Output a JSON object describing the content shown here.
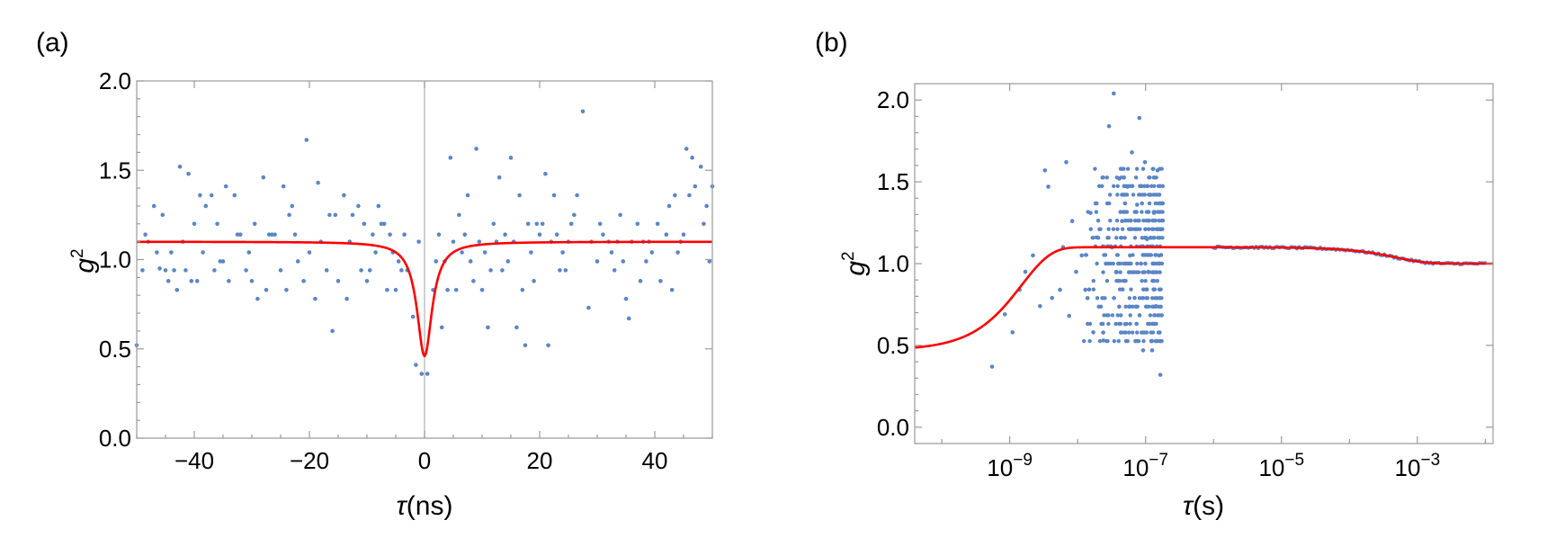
{
  "chart_data": [
    {
      "panel_label": "(a)",
      "type": "scatter",
      "xlabel": "τ(ns)",
      "ylabel": "g2",
      "ylabel_base": "g",
      "ylabel_sup": "2",
      "xlim": [
        -50,
        50
      ],
      "ylim": [
        0.0,
        2.0
      ],
      "xticks": [
        -40,
        -20,
        0,
        20,
        40
      ],
      "xtick_labels": [
        "−40",
        "−20",
        "0",
        "20",
        "40"
      ],
      "yticks": [
        0.0,
        0.5,
        1.0,
        1.5,
        2.0
      ],
      "ytick_labels": [
        "0.0",
        "0.5",
        "1.0",
        "1.5",
        "2.0"
      ],
      "grid": false,
      "vertical_line_at_x": 0,
      "point_color": "#5b86c5",
      "fit_color": "#ff0000",
      "series": [
        {
          "kind": "points",
          "points": [
            [
              -50,
              0.52
            ],
            [
              -49,
              0.94
            ],
            [
              -48.5,
              1.14
            ],
            [
              -48,
              1.1
            ],
            [
              -47,
              1.3
            ],
            [
              -46.5,
              1.04
            ],
            [
              -46,
              0.95
            ],
            [
              -45.5,
              1.25
            ],
            [
              -45,
              0.94
            ],
            [
              -44.5,
              0.88
            ],
            [
              -44,
              1.04
            ],
            [
              -43.5,
              0.94
            ],
            [
              -43,
              0.83
            ],
            [
              -42.5,
              1.52
            ],
            [
              -42,
              1.1
            ],
            [
              -41.5,
              0.94
            ],
            [
              -41,
              1.48
            ],
            [
              -40.5,
              0.88
            ],
            [
              -40,
              1.2
            ],
            [
              -39.5,
              0.88
            ],
            [
              -39,
              1.36
            ],
            [
              -38.5,
              1.04
            ],
            [
              -38,
              1.3
            ],
            [
              -37,
              1.36
            ],
            [
              -36.5,
              0.94
            ],
            [
              -36,
              1.2
            ],
            [
              -35.5,
              0.99
            ],
            [
              -35,
              0.99
            ],
            [
              -34.5,
              1.41
            ],
            [
              -34,
              0.88
            ],
            [
              -33,
              1.36
            ],
            [
              -32.5,
              1.14
            ],
            [
              -32,
              1.14
            ],
            [
              -31,
              0.94
            ],
            [
              -30.5,
              1.04
            ],
            [
              -30,
              0.88
            ],
            [
              -29.5,
              1.2
            ],
            [
              -29,
              0.78
            ],
            [
              -28,
              1.46
            ],
            [
              -27.5,
              0.83
            ],
            [
              -27,
              1.14
            ],
            [
              -26.5,
              1.14
            ],
            [
              -26,
              1.14
            ],
            [
              -25,
              0.94
            ],
            [
              -24.5,
              1.41
            ],
            [
              -24,
              0.83
            ],
            [
              -23.5,
              1.25
            ],
            [
              -23,
              1.3
            ],
            [
              -22.5,
              1.14
            ],
            [
              -22,
              0.99
            ],
            [
              -21,
              0.88
            ],
            [
              -20.5,
              1.67
            ],
            [
              -20,
              1.04
            ],
            [
              -19,
              0.78
            ],
            [
              -18.5,
              1.43
            ],
            [
              -18,
              1.1
            ],
            [
              -17,
              0.94
            ],
            [
              -16.5,
              1.25
            ],
            [
              -16,
              0.6
            ],
            [
              -15.5,
              1.25
            ],
            [
              -15,
              0.88
            ],
            [
              -14,
              1.36
            ],
            [
              -13.5,
              0.78
            ],
            [
              -13,
              1.1
            ],
            [
              -12.5,
              1.25
            ],
            [
              -11.5,
              1.3
            ],
            [
              -11,
              0.94
            ],
            [
              -10.5,
              1.2
            ],
            [
              -10,
              0.88
            ],
            [
              -9.5,
              0.94
            ],
            [
              -9,
              1.14
            ],
            [
              -8.5,
              1.04
            ],
            [
              -8,
              1.3
            ],
            [
              -7.5,
              1.2
            ],
            [
              -7,
              1.2
            ],
            [
              -6.5,
              0.83
            ],
            [
              -6,
              1.14
            ],
            [
              -5.5,
              1.04
            ],
            [
              -5,
              0.83
            ],
            [
              -4.5,
              0.99
            ],
            [
              -4,
              0.94
            ],
            [
              -3.5,
              1.14
            ],
            [
              -3,
              0.94
            ],
            [
              -2,
              0.68
            ],
            [
              -1.5,
              0.41
            ],
            [
              -1,
              1.1
            ],
            [
              -0.5,
              0.36
            ],
            [
              0.5,
              0.36
            ],
            [
              1.5,
              0.83
            ],
            [
              2,
              0.99
            ],
            [
              2.5,
              1.14
            ],
            [
              3,
              0.62
            ],
            [
              3.5,
              0.99
            ],
            [
              4,
              0.83
            ],
            [
              4.5,
              1.57
            ],
            [
              5,
              1.1
            ],
            [
              5.5,
              0.83
            ],
            [
              6,
              1.25
            ],
            [
              6.5,
              1.04
            ],
            [
              7,
              1.14
            ],
            [
              7.5,
              1.36
            ],
            [
              8,
              0.99
            ],
            [
              8.5,
              0.88
            ],
            [
              9,
              1.62
            ],
            [
              9.5,
              1.1
            ],
            [
              10,
              0.83
            ],
            [
              10.5,
              1.04
            ],
            [
              11,
              0.62
            ],
            [
              11.5,
              0.94
            ],
            [
              12,
              1.2
            ],
            [
              12.5,
              1.1
            ],
            [
              13,
              1.46
            ],
            [
              13.5,
              0.94
            ],
            [
              14,
              1.14
            ],
            [
              14.5,
              0.99
            ],
            [
              15,
              1.57
            ],
            [
              15.5,
              1.1
            ],
            [
              16,
              0.62
            ],
            [
              16.5,
              1.36
            ],
            [
              17,
              0.83
            ],
            [
              17.5,
              0.52
            ],
            [
              18,
              1.2
            ],
            [
              18.5,
              1.04
            ],
            [
              19,
              0.88
            ],
            [
              19.5,
              1.2
            ],
            [
              20,
              1.14
            ],
            [
              20.5,
              1.2
            ],
            [
              21,
              1.48
            ],
            [
              21.5,
              0.52
            ],
            [
              22,
              1.1
            ],
            [
              22.5,
              1.36
            ],
            [
              23,
              1.14
            ],
            [
              23.5,
              0.94
            ],
            [
              24,
              1.04
            ],
            [
              24.5,
              0.94
            ],
            [
              25,
              1.1
            ],
            [
              25.5,
              1.2
            ],
            [
              26,
              1.25
            ],
            [
              26.5,
              1.36
            ],
            [
              27.5,
              1.83
            ],
            [
              28.5,
              0.73
            ],
            [
              29,
              1.1
            ],
            [
              30,
              0.99
            ],
            [
              30.5,
              1.2
            ],
            [
              31,
              1.14
            ],
            [
              32,
              1.1
            ],
            [
              32.5,
              1.04
            ],
            [
              33,
              0.94
            ],
            [
              33.5,
              1.1
            ],
            [
              34,
              1.25
            ],
            [
              34.5,
              0.99
            ],
            [
              35,
              0.78
            ],
            [
              35.5,
              0.67
            ],
            [
              36,
              1.1
            ],
            [
              37,
              1.2
            ],
            [
              37.5,
              0.88
            ],
            [
              38,
              1.1
            ],
            [
              38.5,
              0.99
            ],
            [
              39,
              1.1
            ],
            [
              39.5,
              1.04
            ],
            [
              40.5,
              1.2
            ],
            [
              41,
              0.88
            ],
            [
              42,
              1.14
            ],
            [
              42.5,
              1.3
            ],
            [
              43,
              0.83
            ],
            [
              43.5,
              1.36
            ],
            [
              44,
              1.04
            ],
            [
              44.5,
              1.1
            ],
            [
              45,
              1.14
            ],
            [
              45.5,
              1.62
            ],
            [
              46,
              1.36
            ],
            [
              46.5,
              1.57
            ],
            [
              47,
              1.41
            ],
            [
              48,
              1.52
            ],
            [
              48.5,
              1.2
            ],
            [
              49,
              1.3
            ],
            [
              49.5,
              0.99
            ],
            [
              50,
              1.41
            ]
          ]
        },
        {
          "kind": "fit_curve",
          "model": "lorentzian_dip",
          "baseline": 1.1,
          "minimum": 0.46,
          "half_width": 1.6
        }
      ]
    },
    {
      "panel_label": "(b)",
      "type": "scatter",
      "xlabel": "τ(s)",
      "ylabel": "g2",
      "ylabel_base": "g",
      "ylabel_sup": "2",
      "x_scale": "log",
      "xlim": [
        4e-11,
        0.013
      ],
      "ylim": [
        -0.1,
        2.1
      ],
      "xticks": [
        1e-09,
        1e-07,
        1e-05,
        0.001
      ],
      "xtick_labels": [
        {
          "base": "10",
          "exp": "−9"
        },
        {
          "base": "10",
          "exp": "−7"
        },
        {
          "base": "10",
          "exp": "−5"
        },
        {
          "base": "10",
          "exp": "−3"
        }
      ],
      "yticks": [
        0.0,
        0.5,
        1.0,
        1.5,
        2.0
      ],
      "ytick_labels": [
        "0.0",
        "0.5",
        "1.0",
        "1.5",
        "2.0"
      ],
      "grid": false,
      "point_color": "#5b86c5",
      "fit_color": "#ff0000",
      "series": [
        {
          "kind": "points",
          "points": [
            [
              5.5e-10,
              0.37
            ],
            [
              8.5e-10,
              0.69
            ],
            [
              1.1e-09,
              0.58
            ],
            [
              1.4e-09,
              0.84
            ],
            [
              1.7e-09,
              0.95
            ],
            [
              2.2e-09,
              1.05
            ],
            [
              2.8e-09,
              0.74
            ],
            [
              3.3e-09,
              1.57
            ],
            [
              3.7e-09,
              1.47
            ],
            [
              4.2e-09,
              0.79
            ],
            [
              5.5e-09,
              0.84
            ],
            [
              6.1e-09,
              1.1
            ],
            [
              6.8e-09,
              1.62
            ],
            [
              7.5e-09,
              0.68
            ],
            [
              8.3e-09,
              1.26
            ],
            [
              9.5e-09,
              0.95
            ],
            [
              1.15e-08,
              1.05
            ],
            [
              1.3e-08,
              0.84
            ],
            [
              1.55e-08,
              1.31
            ],
            [
              1.7e-08,
              0.58
            ],
            [
              1.9e-08,
              1.16
            ],
            [
              2.1e-08,
              1.21
            ],
            [
              2.4e-08,
              0.53
            ],
            [
              2.6e-08,
              1.0
            ],
            [
              2.9e-08,
              1.84
            ],
            [
              3.2e-08,
              1.1
            ],
            [
              3.4e-08,
              2.04
            ],
            [
              3.7e-08,
              0.95
            ],
            [
              4.1e-08,
              1.52
            ],
            [
              4.5e-08,
              1.26
            ],
            [
              5e-08,
              0.63
            ],
            [
              5.4e-08,
              1.47
            ],
            [
              5.9e-08,
              1.05
            ],
            [
              6.3e-08,
              1.68
            ],
            [
              6.9e-08,
              0.79
            ],
            [
              7.5e-08,
              1.36
            ],
            [
              8.1e-08,
              1.89
            ],
            [
              8.6e-08,
              1.0
            ],
            [
              9.2e-08,
              0.47
            ],
            [
              9.8e-08,
              1.62
            ],
            [
              1.05e-07,
              1.15
            ],
            [
              1.1e-07,
              0.95
            ],
            [
              1.17e-07,
              1.42
            ],
            [
              1.25e-07,
              0.47
            ],
            [
              1.33e-07,
              1.31
            ],
            [
              1.42e-07,
              0.74
            ],
            [
              1.5e-07,
              1.57
            ],
            [
              1.58e-07,
              1.05
            ],
            [
              1.65e-07,
              0.32
            ],
            [
              1.7e-07,
              1.21
            ]
          ],
          "dense_region": {
            "x_start": 1.2e-08,
            "x_end": 1.8e-07,
            "y_min": 0.5,
            "y_max": 1.6,
            "count": 420
          }
        },
        {
          "kind": "smooth_points",
          "x_start": 1e-06,
          "x_end": 0.01,
          "note": "tail follows fit closely"
        },
        {
          "kind": "fit_curve",
          "model": "antibunching_plus_bunching",
          "low_limit": 0.47,
          "plateau": 1.1,
          "final": 1.0
        }
      ]
    }
  ]
}
